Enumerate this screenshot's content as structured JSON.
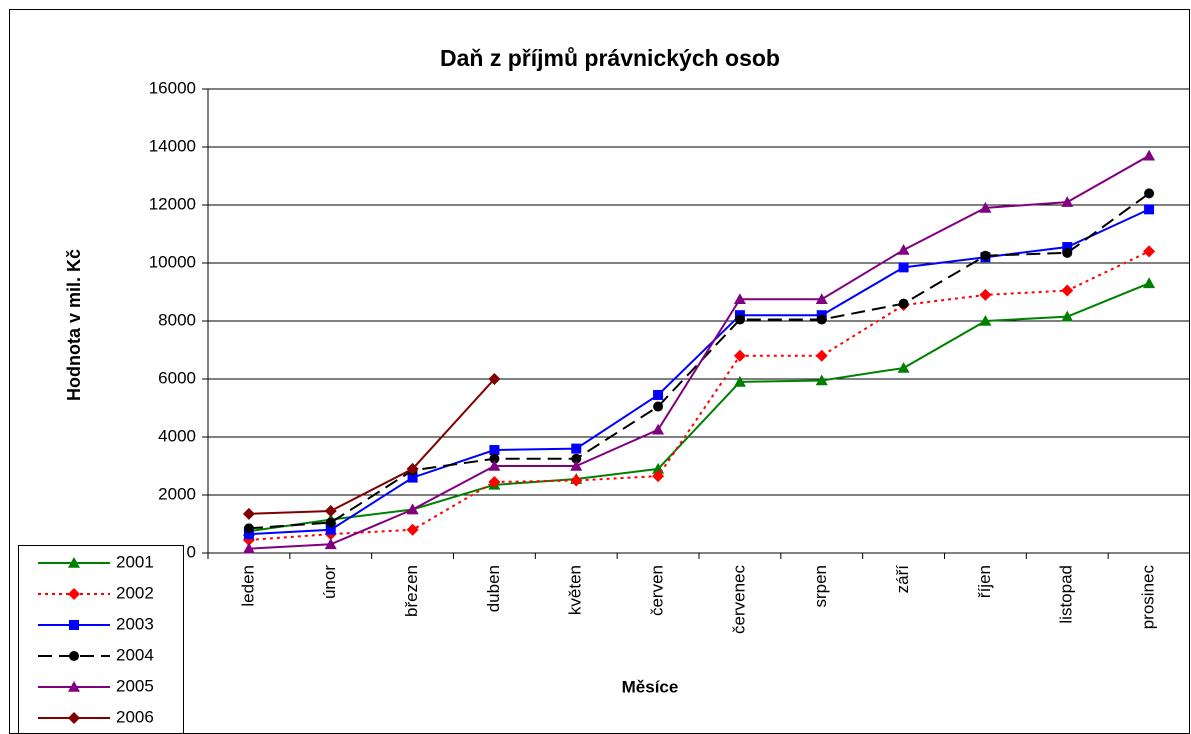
{
  "chart_data": {
    "type": "line",
    "title": "Daň z příjmů právnických osob",
    "x_label": "Měsíce",
    "y_label": "Hodnota v mil. Kč",
    "categories": [
      "leden",
      "únor",
      "březen",
      "duben",
      "květen",
      "červen",
      "červenec",
      "srpen",
      "září",
      "říjen",
      "listopad",
      "prosinec"
    ],
    "ylim": [
      0,
      16000
    ],
    "yticks": [
      0,
      2000,
      4000,
      6000,
      8000,
      10000,
      12000,
      14000,
      16000
    ],
    "grid": true,
    "legend": "bottom-left",
    "series": [
      {
        "name": "2001",
        "color": "#008000",
        "marker": "triangle",
        "dash": "solid",
        "values": [
          750,
          1150,
          1500,
          2350,
          2550,
          2900,
          5900,
          5950,
          6380,
          8000,
          8150,
          9300
        ]
      },
      {
        "name": "2002",
        "color": "#ff0000",
        "marker": "diamond",
        "dash": "dotted",
        "values": [
          450,
          650,
          800,
          2450,
          2500,
          2650,
          6800,
          6800,
          8550,
          8900,
          9050,
          10400
        ]
      },
      {
        "name": "2003",
        "color": "#0000ff",
        "marker": "square",
        "dash": "solid",
        "values": [
          650,
          800,
          2600,
          3550,
          3600,
          5450,
          8200,
          8200,
          9850,
          10200,
          10550,
          11850
        ]
      },
      {
        "name": "2004",
        "color": "#000000",
        "marker": "circle",
        "dash": "dashed",
        "values": [
          850,
          1050,
          2850,
          3250,
          3250,
          5050,
          8050,
          8050,
          8600,
          10250,
          10350,
          12400
        ]
      },
      {
        "name": "2005",
        "color": "#800080",
        "marker": "triangle",
        "dash": "solid",
        "values": [
          150,
          300,
          1500,
          3000,
          3000,
          4250,
          8750,
          8750,
          10450,
          11900,
          12100,
          13700
        ]
      },
      {
        "name": "2006",
        "color": "#800000",
        "marker": "diamond",
        "dash": "solid",
        "values": [
          1350,
          1450,
          2900,
          6000,
          null,
          null,
          null,
          null,
          null,
          null,
          null,
          null
        ]
      }
    ]
  }
}
